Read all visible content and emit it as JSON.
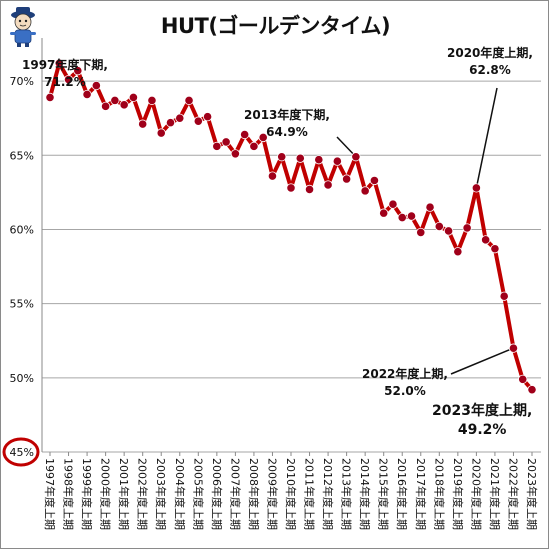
{
  "title": "HUT(ゴールデンタイム)",
  "colors": {
    "line": "#c00000",
    "marker": "#a0001a",
    "grid": "#a6a6a6",
    "circle": "#c00000"
  },
  "chart_data": {
    "type": "line",
    "title": "HUT(ゴールデンタイム)",
    "ylim": [
      45,
      72.5
    ],
    "yticks": [
      "45%",
      "50%",
      "55%",
      "60%",
      "65%",
      "70%"
    ],
    "ytick_values": [
      45,
      50,
      55,
      60,
      65,
      70
    ],
    "grid": true,
    "highlighted_tick": "45%",
    "xtick_labels": [
      "1997年度上期",
      "1998年度上期",
      "1999年度上期",
      "2000年度上期",
      "2001年度上期",
      "2002年度上期",
      "2003年度上期",
      "2004年度上期",
      "2005年度上期",
      "2006年度上期",
      "2007年度上期",
      "2008年度上期",
      "2009年度上期",
      "2010年度上期",
      "2011年度上期",
      "2012年度上期",
      "2013年度上期",
      "2014年度上期",
      "2015年度上期",
      "2016年度上期",
      "2017年度上期",
      "2018年度上期",
      "2019年度上期",
      "2020年度上期",
      "2021年度上期",
      "2022年度上期",
      "2023年度上期"
    ],
    "series": [
      {
        "values": [
          68.9,
          71.2,
          70.1,
          70.7,
          69.1,
          69.7,
          68.3,
          68.7,
          68.4,
          68.9,
          67.1,
          68.7,
          66.5,
          67.2,
          67.5,
          68.7,
          67.3,
          67.6,
          65.6,
          65.9,
          65.1,
          66.4,
          65.6,
          66.2,
          63.6,
          64.9,
          62.8,
          64.8,
          62.7,
          64.7,
          63.0,
          64.6,
          63.4,
          64.9,
          62.6,
          63.3,
          61.1,
          61.7,
          60.8,
          60.9,
          59.8,
          61.5,
          60.2,
          59.9,
          58.5,
          60.1,
          62.8,
          59.3,
          58.7,
          55.5,
          52.0,
          49.9,
          49.2
        ]
      }
    ],
    "annotations": [
      {
        "lines": [
          "1997年度下期,",
          "71.2%"
        ]
      },
      {
        "lines": [
          "2013年度下期,",
          "64.9%"
        ]
      },
      {
        "lines": [
          "2020年度上期,",
          "62.8%"
        ]
      },
      {
        "lines": [
          "2022年度上期,",
          "52.0%"
        ]
      },
      {
        "lines": [
          "2023年度上期,",
          "49.2%"
        ]
      }
    ]
  }
}
